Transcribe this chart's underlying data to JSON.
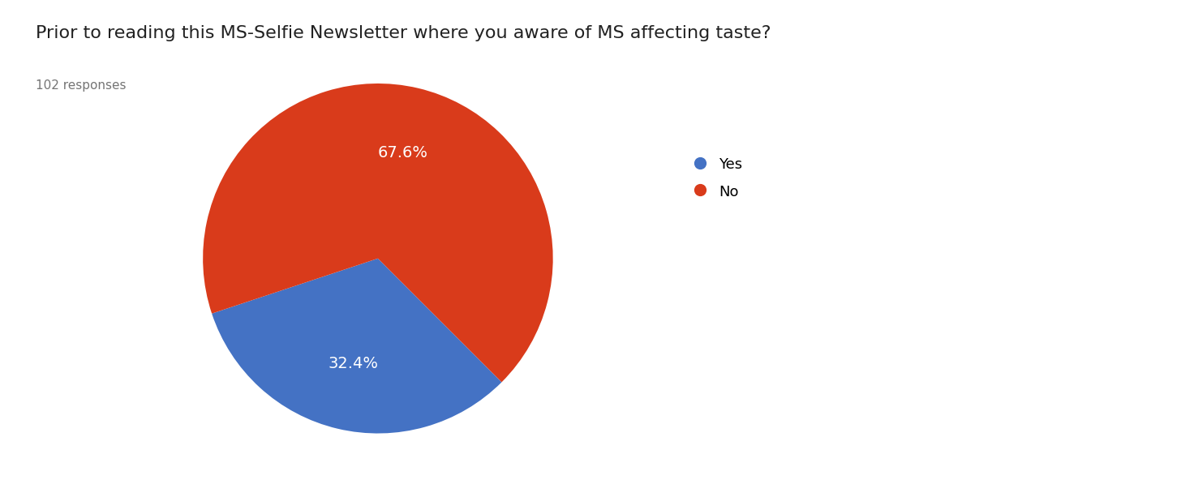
{
  "title": "Prior to reading this MS-Selfie Newsletter where you aware of MS affecting taste?",
  "subtitle": "102 responses",
  "slices": [
    32.4,
    67.6
  ],
  "labels": [
    "Yes",
    "No"
  ],
  "colors": [
    "#4472C4",
    "#D93B1B"
  ],
  "autopct_labels": [
    "32.4%",
    "67.6%"
  ],
  "title_fontsize": 16,
  "subtitle_fontsize": 11,
  "legend_fontsize": 13,
  "autopct_fontsize": 14,
  "background_color": "#ffffff",
  "startangle": -45,
  "pctdistance_yes": 0.6,
  "pctdistance_no": 0.6
}
